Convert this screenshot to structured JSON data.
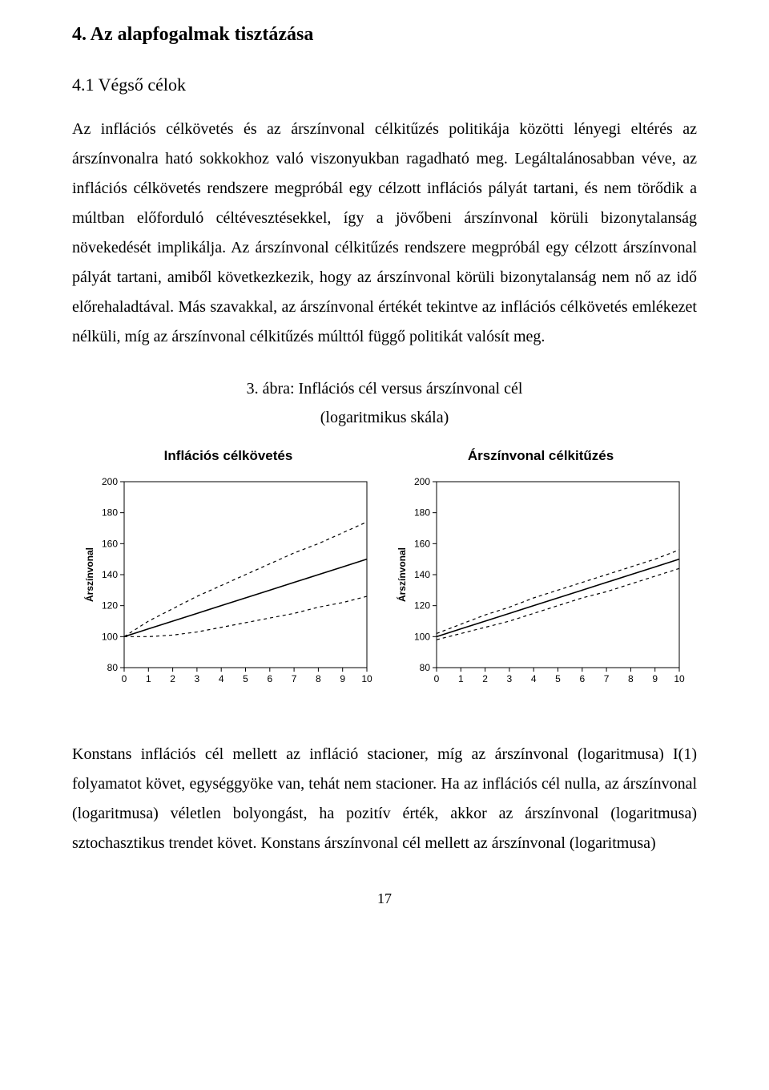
{
  "section_heading": "4. Az alapfogalmak tisztázása",
  "subheading": "4.1 Végső célok",
  "para1": "Az inflációs célkövetés és az árszínvonal célkitűzés politikája közötti lényegi eltérés az árszínvonalra ható sokkokhoz való viszonyukban ragadható meg. Legáltalánosabban véve, az inflációs célkövetés rendszere megpróbál egy célzott inflációs pályát tartani, és nem törődik a múltban előforduló céltévesztésekkel, így a jövőbeni árszínvonal körüli bizonytalanság növekedését implikálja. Az árszínvonal célkitűzés rendszere megpróbál egy célzott árszínvonal pályát tartani, amiből következkezik, hogy az árszínvonal körüli bizonytalanság nem nő az idő előrehaladtával. Más szavakkal, az árszínvonal értékét tekintve az inflációs célkövetés emlékezet nélküli, míg az árszínvonal célkitűzés múlttól függő politikát valósít meg.",
  "figure_title": "3. ábra: Inflációs cél versus árszínvonal cél",
  "figure_sub": "(logaritmikus skála)",
  "chart_left": {
    "type": "line",
    "title": "Inflációs célkövetés",
    "xlabel": "",
    "ylabel": "Árszínvonal",
    "xlim": [
      0,
      10
    ],
    "ylim": [
      80,
      200
    ],
    "xticks": [
      0,
      1,
      2,
      3,
      4,
      5,
      6,
      7,
      8,
      9,
      10
    ],
    "yticks": [
      80,
      100,
      120,
      140,
      160,
      180,
      200
    ],
    "series": [
      {
        "name": "solid",
        "dash": "none",
        "color": "#000000",
        "width": 1.6,
        "points": [
          [
            0,
            100
          ],
          [
            1,
            105
          ],
          [
            2,
            110
          ],
          [
            3,
            115
          ],
          [
            4,
            120
          ],
          [
            5,
            125
          ],
          [
            6,
            130
          ],
          [
            7,
            135
          ],
          [
            8,
            140
          ],
          [
            9,
            145
          ],
          [
            10,
            150
          ]
        ]
      },
      {
        "name": "upper",
        "dash": "4,4",
        "color": "#000000",
        "width": 1.2,
        "points": [
          [
            0,
            100
          ],
          [
            1,
            110
          ],
          [
            2,
            118
          ],
          [
            3,
            126
          ],
          [
            4,
            133
          ],
          [
            5,
            140
          ],
          [
            6,
            147
          ],
          [
            7,
            154
          ],
          [
            8,
            160
          ],
          [
            9,
            167
          ],
          [
            10,
            174
          ]
        ]
      },
      {
        "name": "lower",
        "dash": "4,4",
        "color": "#000000",
        "width": 1.2,
        "points": [
          [
            0,
            100
          ],
          [
            1,
            100
          ],
          [
            2,
            101
          ],
          [
            3,
            103
          ],
          [
            4,
            106
          ],
          [
            5,
            109
          ],
          [
            6,
            112
          ],
          [
            7,
            115
          ],
          [
            8,
            119
          ],
          [
            9,
            122
          ],
          [
            10,
            126
          ]
        ]
      }
    ],
    "tick_fontsize": 12,
    "label_fontsize": 12,
    "axis_color": "#000000",
    "background_color": "#ffffff"
  },
  "chart_right": {
    "type": "line",
    "title": "Árszínvonal célkitűzés",
    "xlabel": "",
    "ylabel": "Árszínvonal",
    "xlim": [
      0,
      10
    ],
    "ylim": [
      80,
      200
    ],
    "xticks": [
      0,
      1,
      2,
      3,
      4,
      5,
      6,
      7,
      8,
      9,
      10
    ],
    "yticks": [
      80,
      100,
      120,
      140,
      160,
      180,
      200
    ],
    "series": [
      {
        "name": "solid",
        "dash": "none",
        "color": "#000000",
        "width": 1.6,
        "points": [
          [
            0,
            100
          ],
          [
            1,
            105
          ],
          [
            2,
            110
          ],
          [
            3,
            115
          ],
          [
            4,
            120
          ],
          [
            5,
            125
          ],
          [
            6,
            130
          ],
          [
            7,
            135
          ],
          [
            8,
            140
          ],
          [
            9,
            145
          ],
          [
            10,
            150
          ]
        ]
      },
      {
        "name": "upper",
        "dash": "4,4",
        "color": "#000000",
        "width": 1.2,
        "points": [
          [
            0,
            102
          ],
          [
            1,
            108
          ],
          [
            2,
            114
          ],
          [
            3,
            119
          ],
          [
            4,
            125
          ],
          [
            5,
            130
          ],
          [
            6,
            135
          ],
          [
            7,
            140
          ],
          [
            8,
            145
          ],
          [
            9,
            150
          ],
          [
            10,
            156
          ]
        ]
      },
      {
        "name": "lower",
        "dash": "4,4",
        "color": "#000000",
        "width": 1.2,
        "points": [
          [
            0,
            98
          ],
          [
            1,
            102
          ],
          [
            2,
            106
          ],
          [
            3,
            110
          ],
          [
            4,
            115
          ],
          [
            5,
            120
          ],
          [
            6,
            125
          ],
          [
            7,
            129
          ],
          [
            8,
            134
          ],
          [
            9,
            139
          ],
          [
            10,
            144
          ]
        ]
      }
    ],
    "tick_fontsize": 12,
    "label_fontsize": 12,
    "axis_color": "#000000",
    "background_color": "#ffffff"
  },
  "para2": "Konstans inflációs cél mellett az infláció stacioner, míg az árszínvonal (logaritmusa) I(1) folyamatot követ, egységgyöke van, tehát nem stacioner. Ha az inflációs cél nulla, az árszínvonal (logaritmusa) véletlen bolyongást, ha pozitív érték, akkor az árszínvonal (logaritmusa) sztochasztikus trendet követ. Konstans árszínvonal cél mellett az árszínvonal (logaritmusa)",
  "page_number": "17"
}
